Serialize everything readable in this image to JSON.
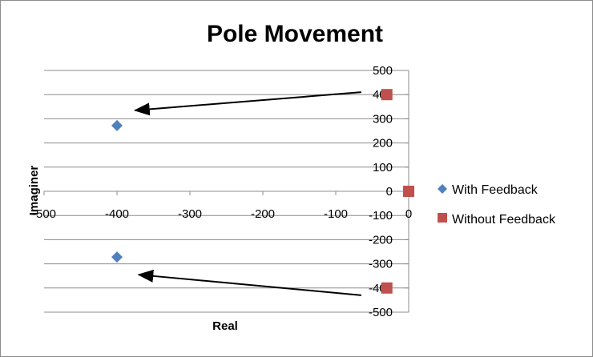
{
  "chart_data": {
    "type": "scatter",
    "title": "Pole Movement",
    "xlabel": "Real",
    "ylabel": "Imaginer",
    "xlim": [
      -500,
      0
    ],
    "ylim": [
      -500,
      500
    ],
    "x_ticks": [
      -500,
      -400,
      -300,
      -200,
      -100,
      0
    ],
    "y_ticks": [
      500,
      400,
      300,
      200,
      100,
      0,
      -100,
      -200,
      -300,
      -400,
      -500
    ],
    "x_tick_labels": [
      "-500",
      "-400",
      "-300",
      "-200",
      "-100",
      "0"
    ],
    "y_tick_labels": [
      "500",
      "400",
      "300",
      "200",
      "100",
      "0",
      "-100",
      "-200",
      "-300",
      "-400",
      "-500"
    ],
    "grid": "horizontal",
    "legend_position": "right",
    "series": [
      {
        "name": "With Feedback",
        "marker": "diamond",
        "color": "#4f81bd",
        "points": [
          [
            -400,
            272
          ],
          [
            -400,
            -272
          ]
        ]
      },
      {
        "name": "Without Feedback",
        "marker": "square",
        "color": "#c0504d",
        "points": [
          [
            -30,
            400
          ],
          [
            0,
            0
          ],
          [
            -30,
            -400
          ]
        ]
      }
    ],
    "annotations": [
      {
        "type": "arrow",
        "from": [
          -65,
          410
        ],
        "to": [
          -375,
          335
        ]
      },
      {
        "type": "arrow",
        "from": [
          -65,
          -430
        ],
        "to": [
          -370,
          -345
        ]
      }
    ]
  }
}
